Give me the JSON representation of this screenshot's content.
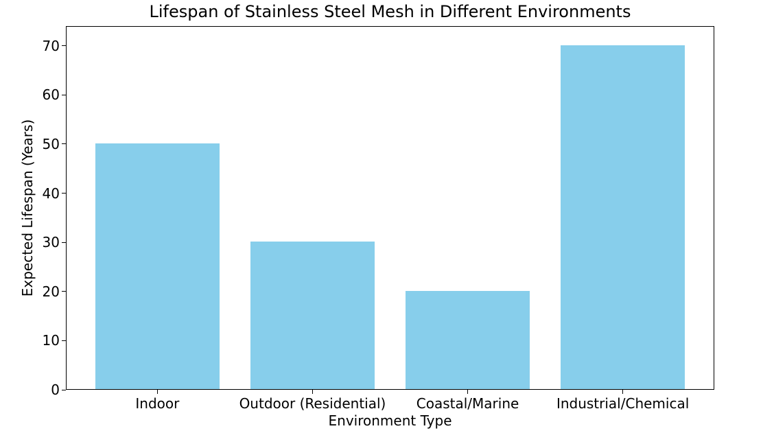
{
  "chart_data": {
    "type": "bar",
    "title": "Lifespan of Stainless Steel Mesh in Different Environments",
    "xlabel": "Environment Type",
    "ylabel": "Expected Lifespan (Years)",
    "categories": [
      "Indoor",
      "Outdoor (Residential)",
      "Coastal/Marine",
      "Industrial/Chemical"
    ],
    "values": [
      50,
      30,
      20,
      70
    ],
    "yticks": [
      0,
      10,
      20,
      30,
      40,
      50,
      60,
      70
    ],
    "ylim": [
      0,
      74
    ],
    "bar_color": "#87CEEB",
    "axis_color": "#000000",
    "background_color": "#ffffff",
    "grid": false,
    "legend": null
  }
}
